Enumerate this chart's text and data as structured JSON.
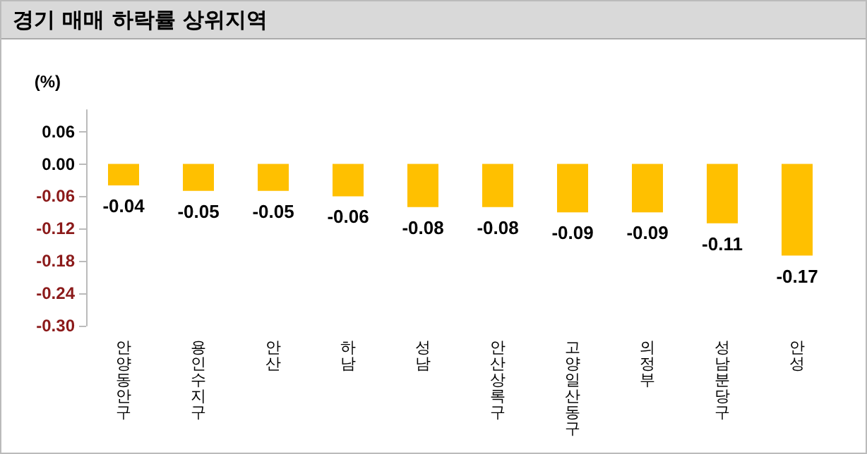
{
  "chart_data": {
    "type": "bar",
    "title": "경기 매매 하락률 상위지역",
    "ylabel": "(%)",
    "categories": [
      "안양 동안구",
      "용인 수지구",
      "안산",
      "하남",
      "성남",
      "안산 상록구",
      "고양 일산동구",
      "의정부",
      "성남 분당구",
      "안성"
    ],
    "values": [
      -0.04,
      -0.05,
      -0.05,
      -0.06,
      -0.08,
      -0.08,
      -0.09,
      -0.09,
      -0.11,
      -0.17
    ],
    "color": "#ffc000",
    "data_labels": true,
    "ylim": [
      -0.3,
      0.1
    ],
    "yticks": [
      {
        "value": 0.06,
        "label": "0.06"
      },
      {
        "value": 0,
        "label": "0.00"
      },
      {
        "value": -0.06,
        "label": "-0.06"
      },
      {
        "value": -0.12,
        "label": "-0.12"
      },
      {
        "value": -0.18,
        "label": "-0.18"
      },
      {
        "value": -0.24,
        "label": "-0.24"
      },
      {
        "value": -0.3,
        "label": "-0.30"
      }
    ],
    "grid": false
  }
}
